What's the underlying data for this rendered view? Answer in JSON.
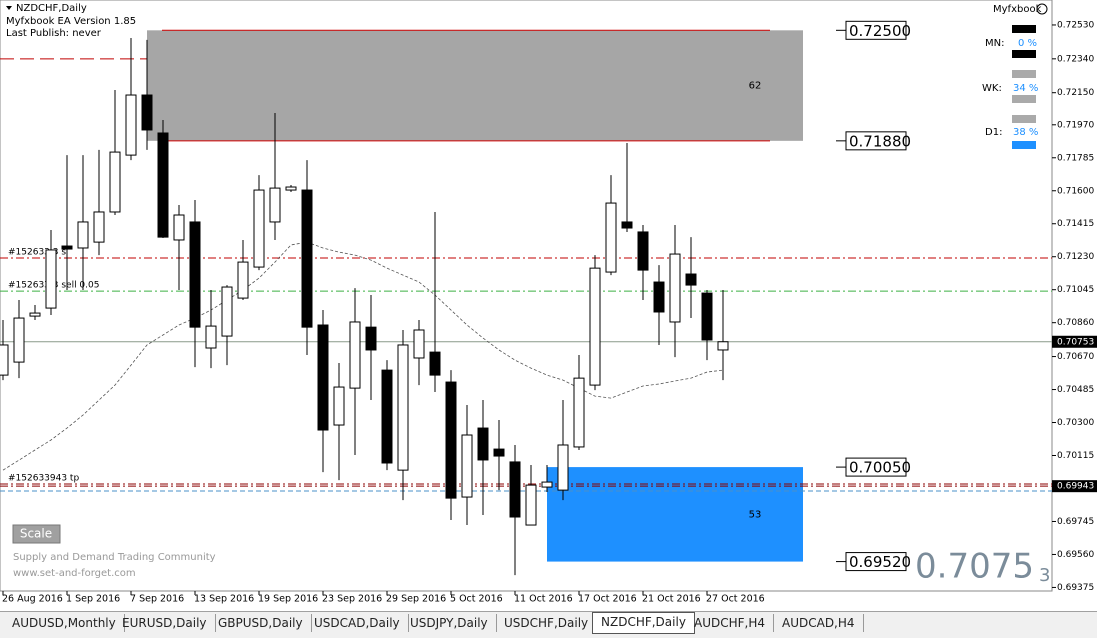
{
  "chart_data": {
    "type": "candlestick",
    "title": "NZDCHF,Daily",
    "annotations": [
      "Myfxbook EA Version 1.85",
      "Last Publish: never"
    ],
    "categories": [
      "26 Aug 2016",
      null,
      null,
      null,
      "1 Sep 2016",
      null,
      null,
      null,
      "7 Sep 2016",
      null,
      null,
      null,
      "13 Sep 2016",
      null,
      null,
      null,
      "19 Sep 2016",
      null,
      null,
      null,
      "23 Sep 2016",
      null,
      null,
      null,
      "29 Sep 2016",
      null,
      null,
      null,
      "5 Oct 2016",
      null,
      null,
      null,
      "11 Oct 2016",
      null,
      null,
      null,
      "17 Oct 2016",
      null,
      null,
      null,
      "21 Oct 2016",
      null,
      null,
      null,
      "27 Oct 2016",
      null
    ],
    "open": [
      0.70566,
      0.70639,
      0.70897,
      0.70942,
      0.7129,
      0.71279,
      0.71312,
      0.71481,
      0.718,
      0.72137,
      0.71924,
      0.71324,
      0.71425,
      0.70718,
      0.70785,
      0.70998,
      0.71172,
      0.71425,
      0.71604,
      0.71604,
      0.70847,
      0.70286,
      0.70493,
      0.70835,
      0.70594,
      0.70033,
      0.70662,
      0.70695,
      0.70527,
      0.69882,
      0.70269,
      0.70151,
      0.70079,
      0.69725,
      0.69938,
      0.69921,
      0.70163,
      0.7051,
      0.71144,
      0.71425,
      0.71369,
      0.71088,
      0.70864,
      0.71133,
      0.71026,
      0.70707
    ],
    "high": [
      0.70875,
      0.70987,
      0.70959,
      0.7138,
      0.718,
      0.718,
      0.71829,
      0.72165,
      0.72457,
      0.72446,
      0.71997,
      0.7152,
      0.71548,
      0.71043,
      0.71071,
      0.71324,
      0.71688,
      0.72036,
      0.71632,
      0.71772,
      0.70931,
      0.70634,
      0.71054,
      0.71015,
      0.7065,
      0.70819,
      0.70875,
      0.71481,
      0.70594,
      0.70398,
      0.70426,
      0.70314,
      0.70174,
      0.70062,
      0.70062,
      0.70426,
      0.70679,
      0.71239,
      0.71688,
      0.71868,
      0.71408,
      0.71183,
      0.71408,
      0.7134,
      0.71043,
      0.71043
    ],
    "low": [
      0.70538,
      0.70549,
      0.70875,
      0.70903,
      0.71043,
      0.71043,
      0.71239,
      0.71464,
      0.71772,
      0.71829,
      0.71335,
      0.71043,
      0.70611,
      0.70605,
      0.70622,
      0.70987,
      0.71155,
      0.71324,
      0.71593,
      0.70679,
      0.70022,
      0.69977,
      0.70118,
      0.70426,
      0.70033,
      0.69865,
      0.7051,
      0.70471,
      0.69753,
      0.69725,
      0.69781,
      0.69921,
      0.69444,
      0.69725,
      0.6991,
      0.69865,
      0.70146,
      0.70482,
      0.71127,
      0.71369,
      0.70987,
      0.70735,
      0.70667,
      0.70886,
      0.7065,
      0.70538
    ],
    "close": [
      0.70735,
      0.70886,
      0.70914,
      0.71268,
      0.71273,
      0.71425,
      0.71481,
      0.71817,
      0.72137,
      0.71941,
      0.7134,
      0.71464,
      0.70835,
      0.70841,
      0.7106,
      0.712,
      0.71604,
      0.71615,
      0.71621,
      0.70835,
      0.70258,
      0.70499,
      0.70864,
      0.70707,
      0.70073,
      0.70735,
      0.70819,
      0.70566,
      0.69876,
      0.7023,
      0.7009,
      0.70112,
      0.6977,
      0.69949,
      0.69966,
      0.70174,
      0.70549,
      0.71166,
      0.71531,
      0.71391,
      0.71155,
      0.7092,
      0.71245,
      0.71071,
      0.70763,
      0.70753
    ],
    "up_color": "#ffffff",
    "down_color": "#000000",
    "ma": {
      "color": "#555555",
      "values": [
        0.70033,
        0.70089,
        0.70146,
        0.70202,
        0.70269,
        0.70342,
        0.70426,
        0.7051,
        0.70622,
        0.70735,
        0.70791,
        0.70847,
        0.70886,
        0.70931,
        0.70987,
        0.71043,
        0.7111,
        0.712,
        0.71296,
        0.71312,
        0.71279,
        0.71256,
        0.71239,
        0.71211,
        0.71166,
        0.71127,
        0.71088,
        0.71015,
        0.70931,
        0.70847,
        0.70774,
        0.70707,
        0.7065,
        0.70605,
        0.70566,
        0.70538,
        0.70493,
        0.70448,
        0.70437,
        0.70471,
        0.70505,
        0.70516,
        0.70533,
        0.70549,
        0.70583,
        0.70594
      ]
    },
    "ylim": [
      0.69355,
      0.7267
    ],
    "yticks": [
      {
        "value": 0.7253,
        "label": "0.72530"
      },
      {
        "value": 0.7234,
        "label": "0.72340"
      },
      {
        "value": 0.7215,
        "label": "0.72150"
      },
      {
        "value": 0.7197,
        "label": "0.71970"
      },
      0.71785,
      {
        "value": 0.716,
        "label": "0.71600"
      },
      0.71415,
      {
        "value": 0.7123,
        "label": "0.71230"
      },
      0.71045,
      {
        "value": 0.7086,
        "label": "0.70860"
      },
      {
        "value": 0.7067,
        "label": "0.70670"
      },
      0.70485,
      {
        "value": 0.703,
        "label": "0.70300"
      },
      0.70115,
      0.69745,
      {
        "value": 0.6956,
        "label": "0.69560"
      },
      0.69375
    ],
    "zones": [
      {
        "high": {
          "value": 0.725,
          "label": "0.72500"
        },
        "low": {
          "value": 0.7188,
          "label": "0.71880"
        },
        "strength": 62,
        "color": "#a6a6a6"
      },
      {
        "high": {
          "value": 0.7005,
          "label": "0.70050"
        },
        "low": {
          "value": 0.6952,
          "label": "0.69520"
        },
        "strength": 53,
        "color": "#1e90ff"
      }
    ],
    "levels": [
      {
        "value": 0.7234,
        "color": "#c00000",
        "dash": "long"
      },
      {
        "value": 0.71223,
        "color": "#c00000",
        "dash": "dashdot",
        "text": "#152633   3 s"
      },
      {
        "value": 0.71037,
        "color": "#3cb043",
        "dash": "dashdot",
        "text": "#152633   3 sell 0.05"
      },
      {
        "value": 0.69955,
        "color": "#8b0000",
        "dash": "dashdot",
        "text": "#152633943 tp"
      },
      {
        "value": 0.69943,
        "color": "#8b0000",
        "dash": "dashdot",
        "label": "0.69943"
      },
      {
        "value": 0.69916,
        "color": "#4a90c8",
        "dash": "dash"
      }
    ],
    "last_price": {
      "value": 0.70753,
      "label": "0.70753",
      "color": "#8a9a8a"
    }
  },
  "panel": {
    "title": "Myfxbook",
    "rows": [
      {
        "label": "MN:",
        "value": "0 %"
      },
      {
        "label": "WK:",
        "value": "34 %"
      },
      {
        "label": "D1:",
        "value": "38 %"
      }
    ]
  },
  "footer": {
    "button": "Scale",
    "lines": [
      "Supply and Demand Trading Community",
      "www.set-and-forget.com"
    ]
  },
  "bid": {
    "main": "0.7075",
    "last": "3"
  },
  "tabs": [
    "AUDUSD,Monthly",
    "EURUSD,Daily",
    "GBPUSD,Daily",
    "USDCAD,Daily",
    "USDJPY,Daily",
    "USDCHF,Daily",
    "NZDCHF,Daily",
    "AUDCHF,H4",
    "AUDCAD,H4"
  ],
  "active_tab": 6
}
